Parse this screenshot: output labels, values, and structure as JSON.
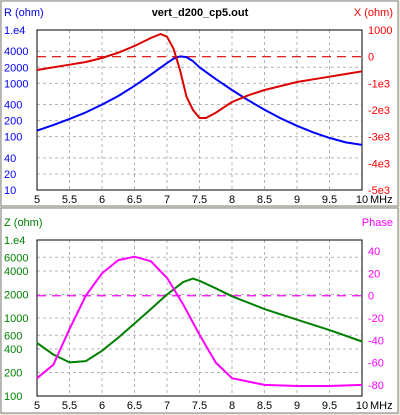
{
  "window": {
    "background": "#ece9d8"
  },
  "chart_data": [
    {
      "type": "line",
      "title": "vert_d200_cp5.out",
      "xlabel": "MHz",
      "left_axis": {
        "label": "R (ohm)",
        "scale": "log",
        "range": [
          10,
          10000
        ],
        "color": "#0000ff",
        "tick_labels": [
          "1.e4",
          "4000",
          "2000",
          "1000",
          "400",
          "200",
          "100",
          "40",
          "20",
          "10"
        ],
        "tick_values": [
          10000,
          4000,
          2000,
          1000,
          400,
          200,
          100,
          40,
          20,
          10
        ]
      },
      "right_axis": {
        "label": "X (ohm)",
        "scale": "linear",
        "range": [
          -5000,
          1000
        ],
        "color": "#ff0000",
        "tick_labels": [
          "1000",
          "0",
          "-1e3",
          "-2e3",
          "-3e3",
          "-4e3",
          "-5e3"
        ],
        "tick_values": [
          1000,
          0,
          -1000,
          -2000,
          -3000,
          -4000,
          -5000
        ]
      },
      "x_range": [
        5,
        10
      ],
      "x_ticks": [
        5,
        5.5,
        6,
        6.5,
        7,
        7.5,
        8,
        8.5,
        9,
        9.5,
        10
      ],
      "x_tick_labels": [
        "5",
        "5.5",
        "6",
        "6.5",
        "7",
        "7.5",
        "8",
        "8.5",
        "9",
        "9.5",
        "10"
      ],
      "grid": true,
      "series": [
        {
          "axis": "left",
          "color": "#0000ff",
          "x": [
            5.0,
            5.25,
            5.5,
            5.75,
            6.0,
            6.25,
            6.5,
            6.75,
            7.0,
            7.1,
            7.2,
            7.3,
            7.4,
            7.5,
            7.75,
            8.0,
            8.25,
            8.5,
            8.75,
            9.0,
            9.25,
            9.5,
            9.75,
            10.0
          ],
          "values": [
            130,
            165,
            215,
            285,
            400,
            580,
            900,
            1450,
            2400,
            2900,
            3200,
            3100,
            2600,
            2000,
            1200,
            750,
            480,
            320,
            220,
            160,
            120,
            95,
            78,
            70
          ]
        },
        {
          "axis": "right",
          "color": "#dd0000",
          "x": [
            5.0,
            5.25,
            5.5,
            5.75,
            6.0,
            6.25,
            6.5,
            6.75,
            6.9,
            7.0,
            7.1,
            7.2,
            7.3,
            7.4,
            7.5,
            7.6,
            7.75,
            8.0,
            8.25,
            8.5,
            8.75,
            9.0,
            9.25,
            9.5,
            9.75,
            10.0
          ],
          "values": [
            -500,
            -400,
            -300,
            -200,
            -50,
            150,
            400,
            700,
            850,
            750,
            300,
            -500,
            -1500,
            -2000,
            -2300,
            -2300,
            -2100,
            -1700,
            -1450,
            -1250,
            -1100,
            -950,
            -850,
            -750,
            -650,
            -550
          ]
        }
      ],
      "reference_lines": [
        {
          "axis": "right",
          "value": 0,
          "color": "#dd0000",
          "dashed": true
        }
      ]
    },
    {
      "type": "line",
      "title": "",
      "xlabel": "MHz",
      "left_axis": {
        "label": "Z (ohm)",
        "scale": "log",
        "range": [
          100,
          10000
        ],
        "color": "#008000",
        "tick_labels": [
          "1.e4",
          "6000",
          "4000",
          "2000",
          "1000",
          "600",
          "400",
          "200",
          "100"
        ],
        "tick_values": [
          10000,
          6000,
          4000,
          2000,
          1000,
          600,
          400,
          200,
          100
        ]
      },
      "right_axis": {
        "label": "Phase",
        "scale": "linear",
        "range": [
          -90,
          50
        ],
        "color": "#ff00ff",
        "tick_labels": [
          "40",
          "20",
          "0",
          "-20",
          "-40",
          "-60",
          "-80"
        ],
        "tick_values": [
          40,
          20,
          0,
          -20,
          -40,
          -60,
          -80
        ]
      },
      "x_range": [
        5,
        10
      ],
      "x_ticks": [
        5,
        5.5,
        6,
        6.5,
        7,
        7.5,
        8,
        8.5,
        9,
        9.5,
        10
      ],
      "x_tick_labels": [
        "5",
        "5.5",
        "6",
        "6.5",
        "7",
        "7.5",
        "8",
        "8.5",
        "9",
        "9.5",
        "10"
      ],
      "grid": true,
      "series": [
        {
          "axis": "left",
          "color": "#008000",
          "x": [
            5.0,
            5.25,
            5.5,
            5.75,
            6.0,
            6.25,
            6.5,
            6.75,
            7.0,
            7.25,
            7.4,
            7.5,
            7.75,
            8.0,
            8.5,
            9.0,
            9.5,
            10.0
          ],
          "values": [
            480,
            340,
            270,
            280,
            380,
            560,
            850,
            1300,
            2000,
            2900,
            3200,
            3000,
            2400,
            1900,
            1300,
            950,
            700,
            500
          ]
        },
        {
          "axis": "right",
          "color": "#ff00ff",
          "x": [
            5.0,
            5.25,
            5.5,
            5.75,
            6.0,
            6.25,
            6.5,
            6.75,
            7.0,
            7.25,
            7.5,
            7.75,
            8.0,
            8.5,
            9.0,
            9.5,
            10.0
          ],
          "values": [
            -74,
            -62,
            -30,
            0,
            20,
            32,
            35,
            31,
            16,
            -8,
            -35,
            -60,
            -74,
            -80,
            -81,
            -81,
            -80
          ]
        }
      ],
      "reference_lines": [
        {
          "axis": "right",
          "value": 0,
          "color": "#ff00ff",
          "dashed": true
        }
      ]
    }
  ]
}
